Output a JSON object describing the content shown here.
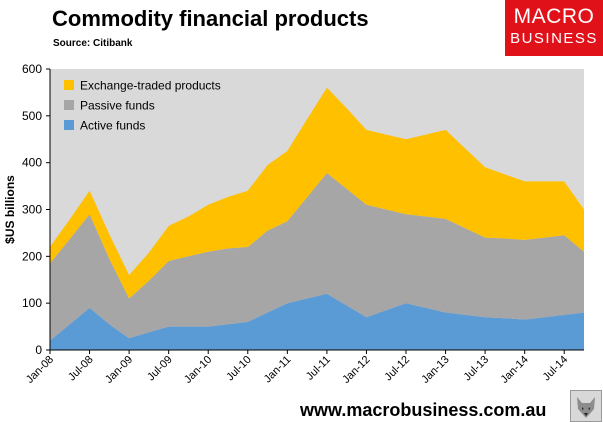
{
  "header": {
    "title": "Commodity financial products",
    "subtitle": "Source: Citibank"
  },
  "logo": {
    "line1": "MACRO",
    "line2": "BUSINESS"
  },
  "footer": {
    "url": "www.macrobusiness.com.au"
  },
  "colors": {
    "active": "#5b9bd5",
    "passive": "#a6a6a6",
    "etp": "#ffc000",
    "plot_bg": "#d9d9d9",
    "logo_bg": "#e1111a"
  },
  "chart_data": {
    "type": "area",
    "stacked": true,
    "title": "",
    "ylabel": "$US billions",
    "ylim": [
      0,
      600
    ],
    "yticks": [
      0,
      100,
      200,
      300,
      400,
      500,
      600
    ],
    "grid": false,
    "legend_position": "top-left",
    "x": [
      "Jan-08",
      "Apr-08",
      "Jul-08",
      "Oct-08",
      "Jan-09",
      "Apr-09",
      "Jul-09",
      "Oct-09",
      "Jan-10",
      "Apr-10",
      "Jul-10",
      "Oct-10",
      "Jan-11",
      "Apr-11",
      "Jul-11",
      "Oct-11",
      "Jan-12",
      "Apr-12",
      "Jul-12",
      "Oct-12",
      "Jan-13",
      "Apr-13",
      "Jul-13",
      "Oct-13",
      "Jan-14",
      "Apr-14",
      "Jul-14",
      "Oct-14"
    ],
    "xtick_labels": [
      "Jan-08",
      "Jul-08",
      "Jan-09",
      "Jul-09",
      "Jan-10",
      "Jul-10",
      "Jan-11",
      "Jul-11",
      "Jan-12",
      "Jul-12",
      "Jan-13",
      "Jul-13",
      "Jan-14",
      "Jul-14"
    ],
    "series": [
      {
        "name": "Active funds",
        "color_key": "active",
        "values": [
          20,
          55,
          90,
          55,
          25,
          38,
          50,
          50,
          50,
          55,
          60,
          80,
          100,
          110,
          120,
          95,
          70,
          85,
          100,
          90,
          80,
          75,
          70,
          68,
          65,
          70,
          75,
          80
        ]
      },
      {
        "name": "Passive funds",
        "color_key": "passive",
        "values": [
          165,
          182,
          200,
          140,
          85,
          110,
          140,
          150,
          160,
          162,
          160,
          175,
          175,
          216,
          258,
          249,
          240,
          215,
          190,
          195,
          200,
          185,
          170,
          170,
          170,
          170,
          170,
          130
        ]
      },
      {
        "name": "Exchange-traded products",
        "color_key": "etp",
        "values": [
          35,
          42,
          50,
          52,
          50,
          60,
          75,
          85,
          100,
          110,
          120,
          140,
          150,
          167,
          182,
          172,
          160,
          160,
          160,
          175,
          190,
          170,
          150,
          137,
          125,
          120,
          115,
          90
        ]
      }
    ]
  }
}
